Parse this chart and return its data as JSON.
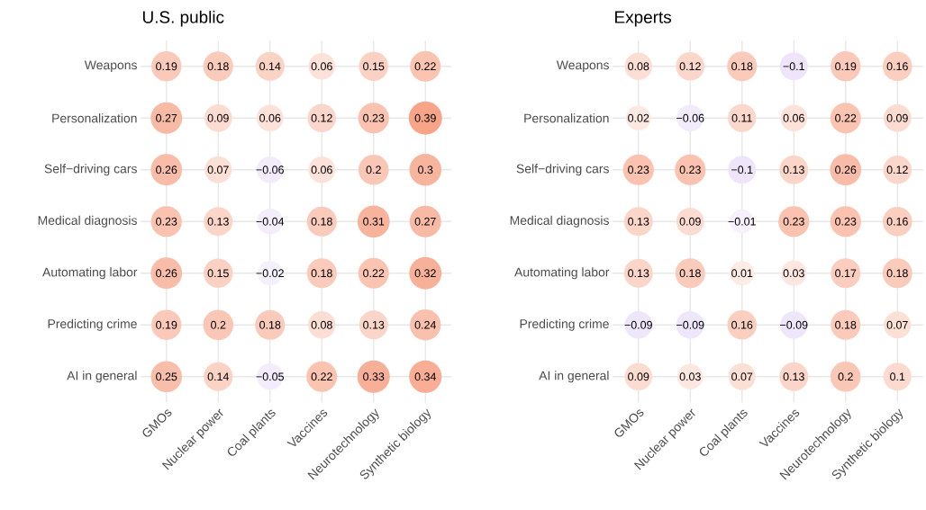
{
  "chart_data": [
    {
      "type": "heatmap",
      "title": "U.S. public",
      "grid": true,
      "data_labels": true,
      "categories": [
        "GMOs",
        "Nuclear power",
        "Coal plants",
        "Vaccines",
        "Neurotechnology",
        "Synthetic biology"
      ],
      "y_categories": [
        "Weapons",
        "Personalization",
        "Self−driving cars",
        "Medical diagnosis",
        "Automating labor",
        "Predicting crime",
        "AI in general"
      ],
      "cells": [
        [
          0.19,
          0.18,
          0.14,
          0.06,
          0.15,
          0.22
        ],
        [
          0.27,
          0.09,
          0.06,
          0.12,
          0.23,
          0.39
        ],
        [
          0.26,
          0.07,
          -0.06,
          0.06,
          0.2,
          0.3
        ],
        [
          0.23,
          0.13,
          -0.04,
          0.18,
          0.31,
          0.27
        ],
        [
          0.26,
          0.15,
          -0.02,
          0.18,
          0.22,
          0.32
        ],
        [
          0.19,
          0.2,
          0.18,
          0.08,
          0.13,
          0.24
        ],
        [
          0.25,
          0.14,
          -0.05,
          0.22,
          0.33,
          0.34
        ]
      ]
    },
    {
      "type": "heatmap",
      "title": "Experts",
      "grid": true,
      "data_labels": true,
      "categories": [
        "GMOs",
        "Nuclear power",
        "Coal plants",
        "Vaccines",
        "Neurotechnology",
        "Synthetic biology"
      ],
      "y_categories": [
        "Weapons",
        "Personalization",
        "Self−driving cars",
        "Medical diagnosis",
        "Automating labor",
        "Predicting crime",
        "AI in general"
      ],
      "cells": [
        [
          0.08,
          0.12,
          0.18,
          -0.1,
          0.19,
          0.16
        ],
        [
          0.02,
          -0.06,
          0.11,
          0.06,
          0.22,
          0.09
        ],
        [
          0.23,
          0.23,
          -0.1,
          0.13,
          0.26,
          0.12
        ],
        [
          0.13,
          0.09,
          -0.01,
          0.23,
          0.23,
          0.16
        ],
        [
          0.13,
          0.18,
          0.01,
          0.03,
          0.17,
          0.18
        ],
        [
          -0.09,
          -0.09,
          0.16,
          -0.09,
          0.18,
          0.07
        ],
        [
          0.09,
          0.03,
          0.07,
          0.13,
          0.2,
          0.1
        ]
      ]
    }
  ]
}
